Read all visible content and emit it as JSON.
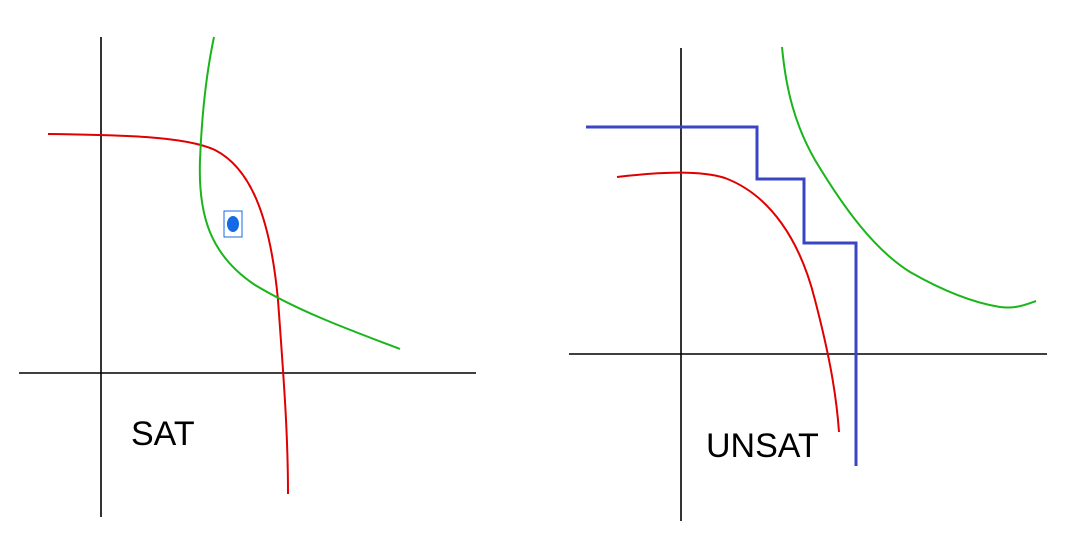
{
  "panels": [
    {
      "id": "sat",
      "label": "SAT",
      "colors": {
        "axes": "#000000",
        "curve_a": "#e00000",
        "curve_b": "#1ab51a",
        "solution_point": "#1469e6"
      },
      "elements": [
        "x-axis",
        "y-axis",
        "red-curve",
        "green-curve",
        "solution-point-marker"
      ]
    },
    {
      "id": "unsat",
      "label": "UNSAT",
      "colors": {
        "axes": "#000000",
        "curve_a": "#e00000",
        "curve_b": "#1ab51a",
        "separator": "#3a45c4"
      },
      "elements": [
        "x-axis",
        "y-axis",
        "red-curve",
        "green-curve",
        "blue-staircase-separator"
      ]
    }
  ]
}
